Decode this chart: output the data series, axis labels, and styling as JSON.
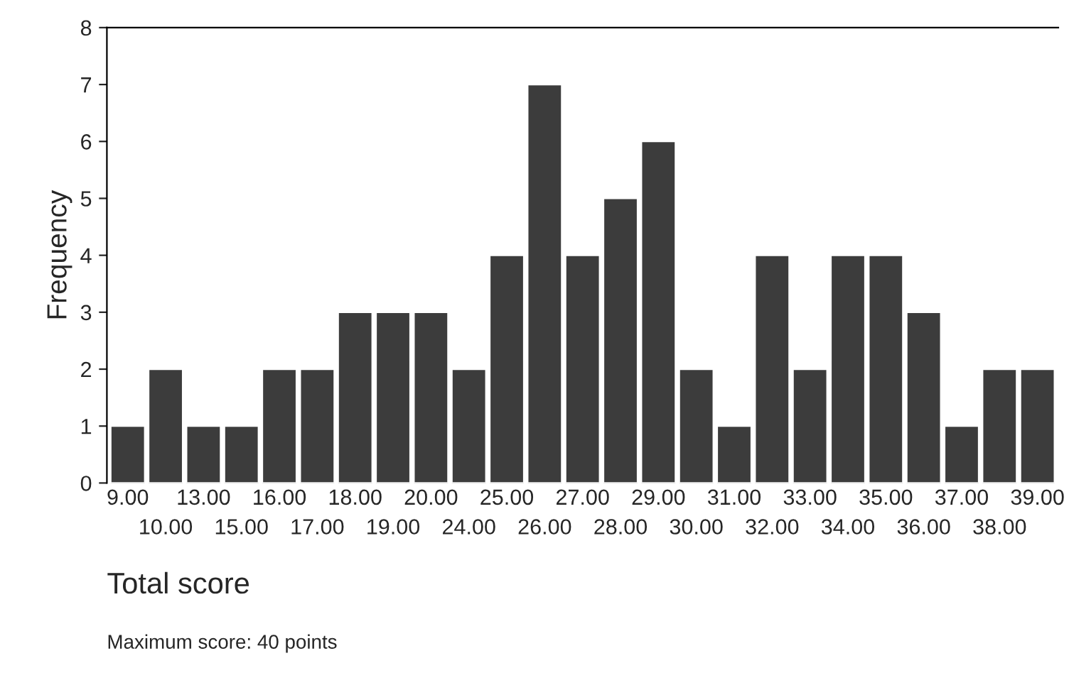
{
  "chart_data": {
    "type": "bar",
    "xlabel": "Total score",
    "ylabel": "Frequency",
    "categories": [
      "9.00",
      "10.00",
      "13.00",
      "15.00",
      "16.00",
      "17.00",
      "18.00",
      "19.00",
      "20.00",
      "24.00",
      "25.00",
      "26.00",
      "27.00",
      "28.00",
      "29.00",
      "30.00",
      "31.00",
      "32.00",
      "33.00",
      "34.00",
      "35.00",
      "36.00",
      "37.00",
      "38.00",
      "39.00"
    ],
    "values": [
      1,
      2,
      1,
      1,
      2,
      2,
      3,
      3,
      3,
      2,
      4,
      7,
      4,
      5,
      6,
      2,
      1,
      4,
      2,
      4,
      4,
      3,
      1,
      2,
      2
    ],
    "color": "#3c3c3c",
    "ylim": [
      0,
      8
    ],
    "yticks": [
      0,
      1,
      2,
      3,
      4,
      5,
      6,
      7,
      8
    ],
    "grid": false,
    "annotations": [
      "Maximum score: 40 points"
    ]
  }
}
